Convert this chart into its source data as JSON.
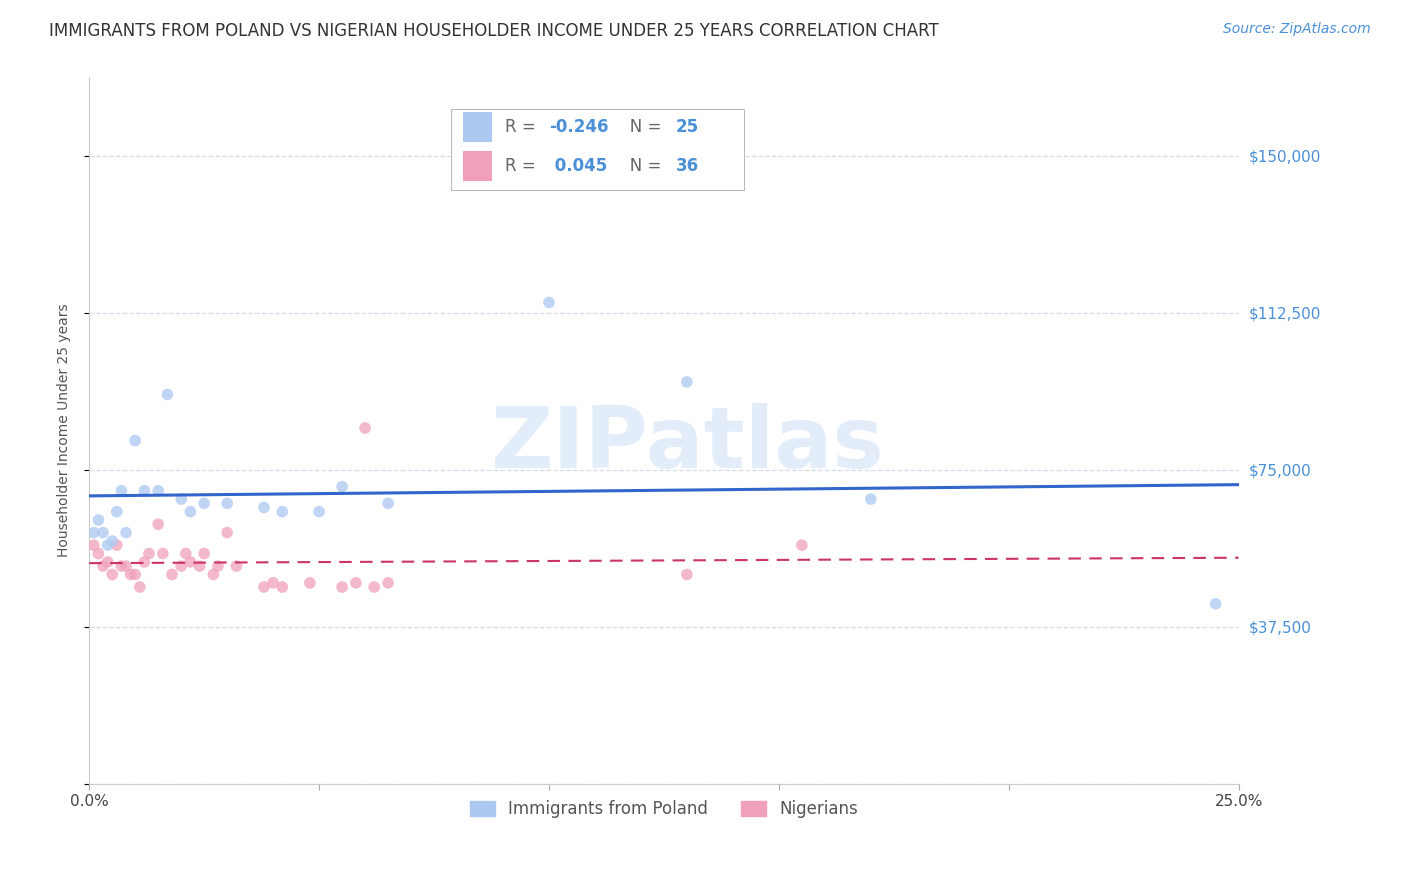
{
  "title": "IMMIGRANTS FROM POLAND VS NIGERIAN HOUSEHOLDER INCOME UNDER 25 YEARS CORRELATION CHART",
  "source": "Source: ZipAtlas.com",
  "ylabel": "Householder Income Under 25 years",
  "xlim": [
    0.0,
    0.25
  ],
  "ylim": [
    0,
    168750
  ],
  "yticks": [
    0,
    37500,
    75000,
    112500,
    150000
  ],
  "ytick_labels": [
    "",
    "$37,500",
    "$75,000",
    "$112,500",
    "$150,000"
  ],
  "xticks": [
    0.0,
    0.05,
    0.1,
    0.15,
    0.2,
    0.25
  ],
  "xtick_labels": [
    "0.0%",
    "",
    "",
    "",
    "",
    "25.0%"
  ],
  "background_color": "#ffffff",
  "grid_color": "#d0d8e8",
  "poland_color": "#aac8f0",
  "poland_line_color": "#3366cc",
  "nigerian_color": "#f0a0b8",
  "nigerian_line_color": "#cc3366",
  "poland_x": [
    0.001,
    0.002,
    0.003,
    0.004,
    0.005,
    0.006,
    0.007,
    0.008,
    0.01,
    0.012,
    0.015,
    0.017,
    0.02,
    0.022,
    0.025,
    0.03,
    0.038,
    0.042,
    0.05,
    0.055,
    0.065,
    0.1,
    0.13,
    0.17,
    0.245
  ],
  "poland_y": [
    60000,
    63000,
    60000,
    57000,
    58000,
    65000,
    70000,
    60000,
    82000,
    70000,
    70000,
    93000,
    68000,
    65000,
    67000,
    67000,
    66000,
    65000,
    65000,
    71000,
    67000,
    115000,
    96000,
    68000,
    43000
  ],
  "nigerian_x": [
    0.001,
    0.002,
    0.003,
    0.004,
    0.005,
    0.006,
    0.007,
    0.008,
    0.009,
    0.01,
    0.011,
    0.012,
    0.013,
    0.015,
    0.016,
    0.018,
    0.02,
    0.021,
    0.022,
    0.024,
    0.025,
    0.027,
    0.028,
    0.03,
    0.032,
    0.038,
    0.04,
    0.042,
    0.048,
    0.055,
    0.058,
    0.06,
    0.062,
    0.065,
    0.13,
    0.155
  ],
  "nigerian_y": [
    57000,
    55000,
    52000,
    53000,
    50000,
    57000,
    52000,
    52000,
    50000,
    50000,
    47000,
    53000,
    55000,
    62000,
    55000,
    50000,
    52000,
    55000,
    53000,
    52000,
    55000,
    50000,
    52000,
    60000,
    52000,
    47000,
    48000,
    47000,
    48000,
    47000,
    48000,
    85000,
    47000,
    48000,
    50000,
    57000
  ],
  "marker_size": 70,
  "title_fontsize": 12,
  "axis_label_fontsize": 10,
  "tick_fontsize": 11,
  "source_fontsize": 10
}
